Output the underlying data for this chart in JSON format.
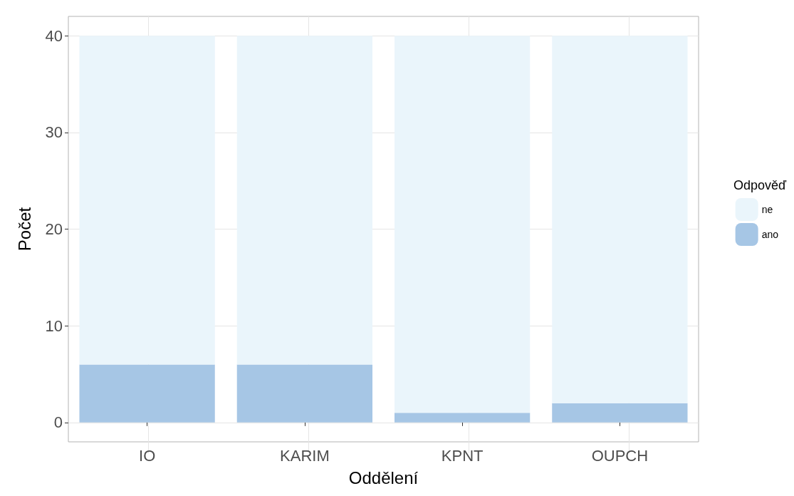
{
  "chart_data": {
    "type": "bar",
    "stacked": true,
    "xlabel": "Oddělení",
    "ylabel": "Počet",
    "legend_title": "Odpověď",
    "categories": [
      "IO",
      "KARIM",
      "KPNT",
      "OUPCH"
    ],
    "series": [
      {
        "name": "ano",
        "color": "#a6c6e5",
        "values": [
          6,
          6,
          1,
          2
        ]
      },
      {
        "name": "ne",
        "color": "#eaf5fb",
        "values": [
          34,
          34,
          39,
          38
        ]
      }
    ],
    "ylim": [
      -2,
      42
    ],
    "yticks": [
      0,
      10,
      20,
      30,
      40
    ],
    "grid": true,
    "legend": "right"
  }
}
